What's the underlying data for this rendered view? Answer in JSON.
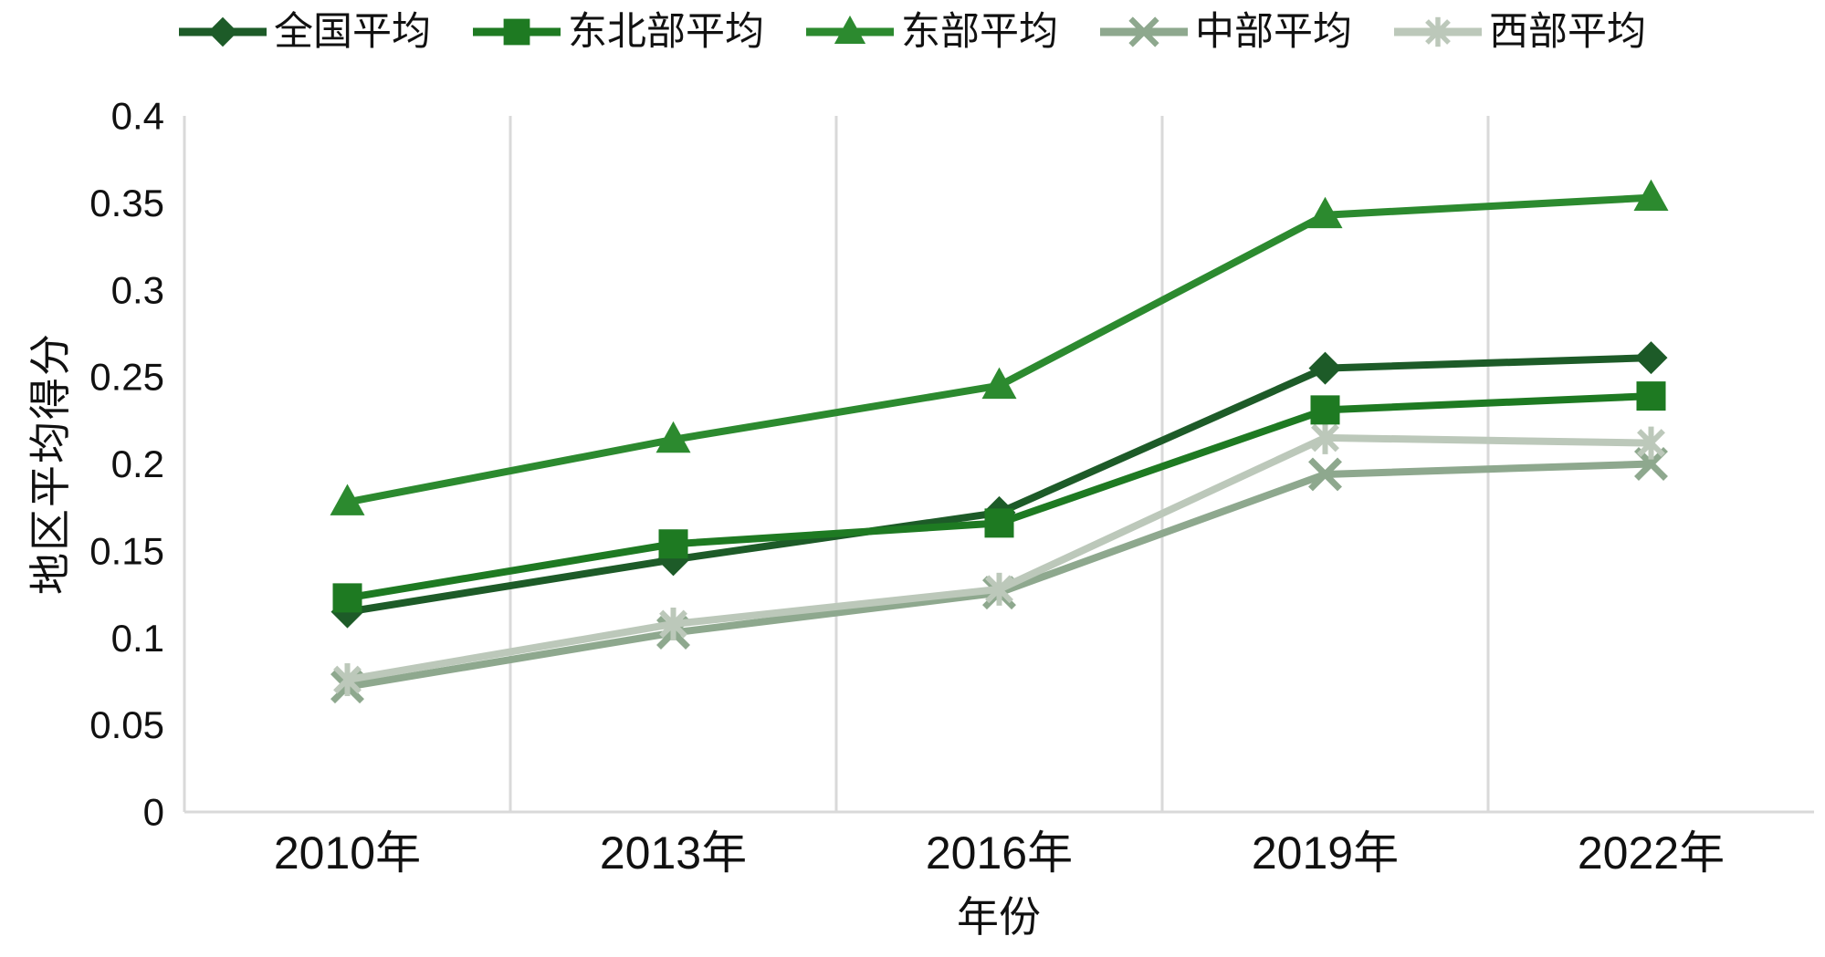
{
  "chart_data": {
    "type": "line",
    "categories": [
      "2010年",
      "2013年",
      "2016年",
      "2019年",
      "2022年"
    ],
    "series": [
      {
        "name": "全国平均",
        "marker": "diamond",
        "color": "#1d5b28",
        "values": [
          0.115,
          0.145,
          0.172,
          0.255,
          0.261
        ]
      },
      {
        "name": "东北部平均",
        "marker": "square",
        "color": "#1e7a22",
        "values": [
          0.123,
          0.154,
          0.166,
          0.231,
          0.239
        ]
      },
      {
        "name": "东部平均",
        "marker": "triangle",
        "color": "#2c8a2f",
        "values": [
          0.178,
          0.214,
          0.245,
          0.343,
          0.353
        ]
      },
      {
        "name": "中部平均",
        "marker": "x",
        "color": "#8ea88e",
        "values": [
          0.072,
          0.103,
          0.126,
          0.194,
          0.2
        ]
      },
      {
        "name": "西部平均",
        "marker": "asterisk",
        "color": "#bcc8ba",
        "values": [
          0.076,
          0.108,
          0.128,
          0.215,
          0.212
        ]
      }
    ],
    "z_order": [
      "中部平均",
      "西部平均",
      "全国平均",
      "东北部平均",
      "东部平均"
    ],
    "title": "",
    "xlabel": "年份",
    "ylabel": "地区平均得分",
    "ylim": [
      0,
      0.4
    ],
    "ytick_step": 0.05,
    "ytick_labels": [
      "0",
      "0.05",
      "0.1",
      "0.15",
      "0.2",
      "0.25",
      "0.3",
      "0.35",
      "0.4"
    ],
    "legend_position": "top",
    "grid": "vertical-between-categories",
    "gridline_color": "#d9d9d9",
    "axis_line_color": "#d9d9d9",
    "text_color": "#111111",
    "background": "#ffffff"
  }
}
